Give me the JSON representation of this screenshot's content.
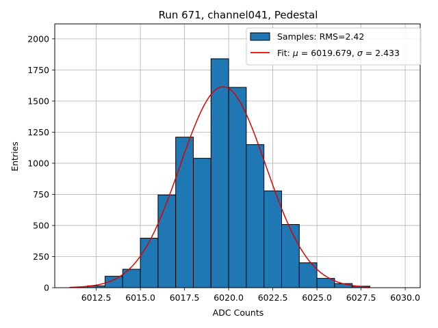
{
  "chart_data": {
    "type": "bar",
    "title": "Run 671, channel041, Pedestal",
    "xlabel": "ADC Counts",
    "ylabel": "Entries",
    "xlim": [
      6010.15,
      6030.85
    ],
    "ylim": [
      0,
      2120
    ],
    "grid": true,
    "legend_placement": "top-right",
    "x_ticks": [
      6012.5,
      6015.0,
      6017.5,
      6020.0,
      6022.5,
      6025.0,
      6027.5,
      6030.0
    ],
    "x_tick_labels": [
      "6012.5",
      "6015.0",
      "6017.5",
      "6020.0",
      "6022.5",
      "6025.0",
      "6027.5",
      "6030.0"
    ],
    "y_ticks": [
      0,
      250,
      500,
      750,
      1000,
      1250,
      1500,
      1750,
      2000
    ],
    "y_tick_labels": [
      "0",
      "250",
      "500",
      "750",
      "1000",
      "1250",
      "1500",
      "1750",
      "2000"
    ],
    "bin_edges": [
      6011,
      6012,
      6013,
      6014,
      6015,
      6016,
      6017,
      6018,
      6019,
      6020,
      6021,
      6022,
      6023,
      6024,
      6025,
      6026,
      6027,
      6028,
      6029,
      6030
    ],
    "counts": [
      2,
      15,
      92,
      148,
      398,
      745,
      1210,
      1040,
      1840,
      1610,
      1150,
      778,
      508,
      200,
      75,
      33,
      12,
      0,
      0
    ],
    "bar_color": "#1f77b4",
    "fit": {
      "mu": 6019.679,
      "sigma": 2.433,
      "amplitude": 1615,
      "x_range": [
        6011,
        6028
      ],
      "color": "#e00000"
    },
    "legend": {
      "samples_label": "Samples: RMS=2.42",
      "fit_label_prefix": "Fit: ",
      "fit_mu_symbol": "μ",
      "fit_mu_value": " = 6019.679, ",
      "fit_sigma_symbol": "σ",
      "fit_sigma_value": " = 2.433"
    }
  }
}
